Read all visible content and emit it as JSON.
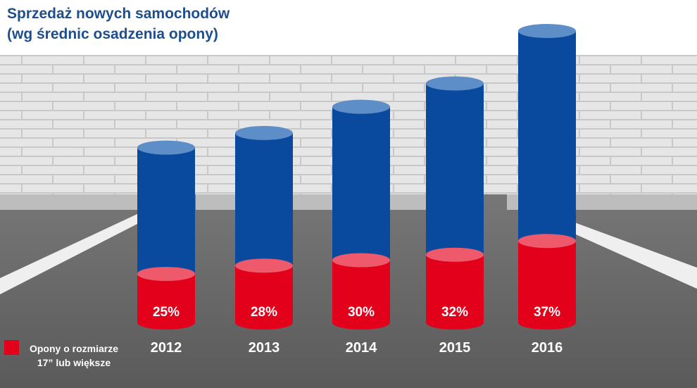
{
  "title_line1": "Sprzedaż nowych samochodów",
  "title_line2": "(wg średnic osadzenia opony)",
  "legend": {
    "line1": "Opony o rozmiarze",
    "line2": "17” lub większe",
    "color": "#e2001a"
  },
  "colors": {
    "blue": "#0a4a9e",
    "blue_top": "#5e8ec7",
    "red": "#e2001a",
    "red_top": "#ee5a6b",
    "title": "#1f4e8c"
  },
  "chart_data": {
    "type": "bar",
    "categories": [
      "2012",
      "2013",
      "2014",
      "2015",
      "2016"
    ],
    "series": [
      {
        "name": "Opony o rozmiarze 17” lub większe",
        "values": [
          25,
          28,
          30,
          32,
          37
        ]
      }
    ],
    "labels": [
      "25%",
      "28%",
      "30%",
      "32%",
      "37%"
    ],
    "total_relative": [
      60,
      65,
      74,
      82,
      100
    ]
  }
}
